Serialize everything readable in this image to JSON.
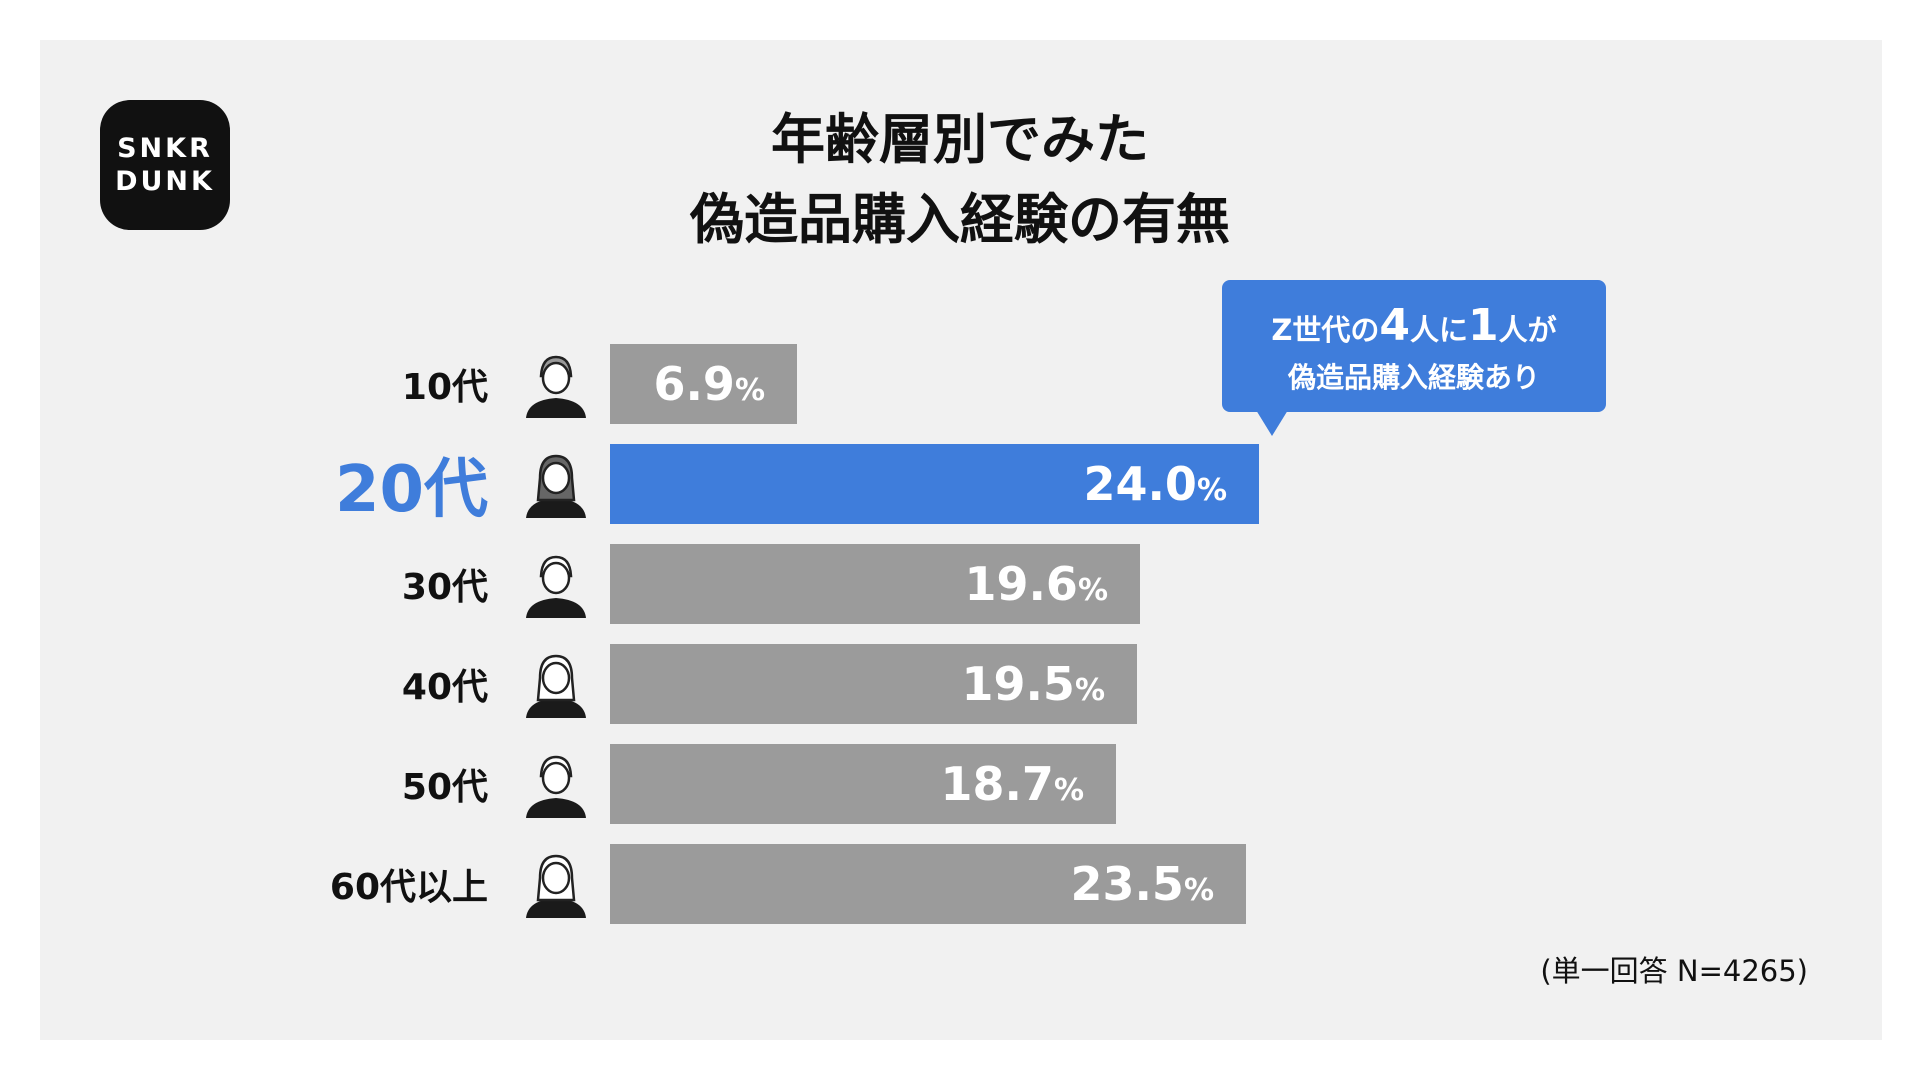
{
  "logo": {
    "line1": "SNKR",
    "line2": "DUNK"
  },
  "title": {
    "line1": "年齢層別でみた",
    "line2": "偽造品購入経験の有無"
  },
  "callout": {
    "line1_a": "Z世代の",
    "line1_b": "4",
    "line1_c": "人に",
    "line1_d": "1",
    "line1_e": "人が",
    "line2": "偽造品購入経験あり"
  },
  "note": "(単一回答 N=4265)",
  "colors": {
    "highlight": "#3f7ddb",
    "bar": "#9b9b9b",
    "background": "#f1f1f1"
  },
  "percent_sign": "%",
  "chart_data": {
    "type": "bar",
    "orientation": "horizontal",
    "title": "年齢層別でみた偽造品購入経験の有無",
    "unit": "%",
    "categories": [
      "10代",
      "20代",
      "30代",
      "40代",
      "50代",
      "60代以上"
    ],
    "values": [
      6.9,
      24.0,
      19.6,
      19.5,
      18.7,
      23.5
    ],
    "value_labels": [
      "6.9",
      "24.0",
      "19.6",
      "19.5",
      "18.7",
      "23.5"
    ],
    "highlight_category": "20代",
    "grid": false,
    "legend": "none"
  }
}
